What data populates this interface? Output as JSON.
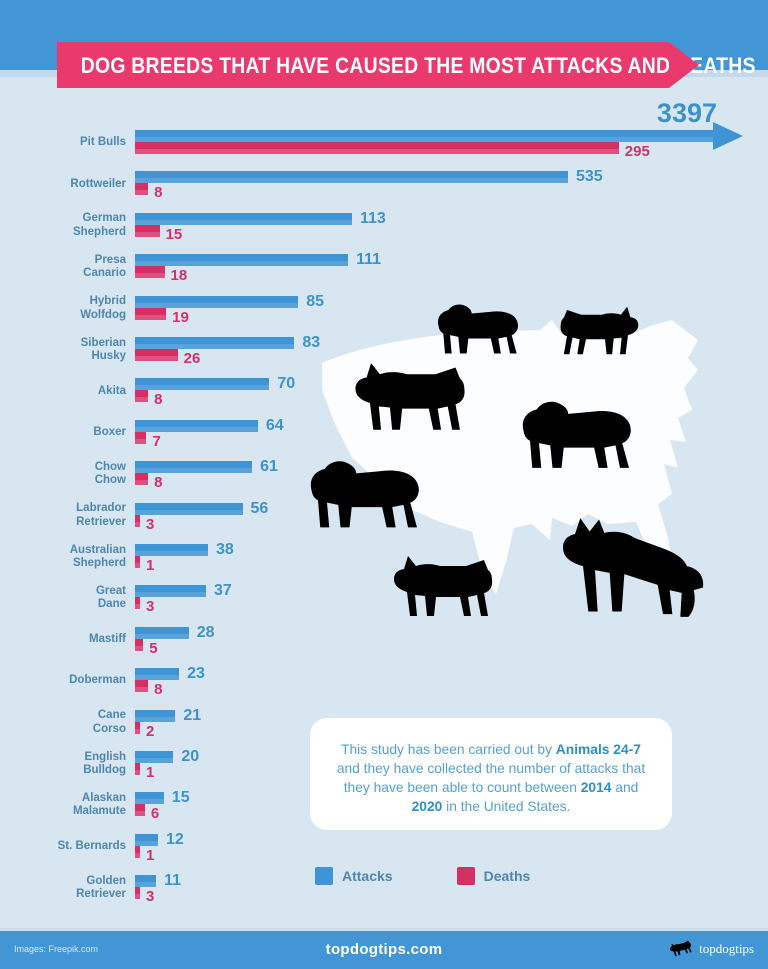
{
  "header": {
    "title": "DOG BREEDS THAT HAVE CAUSED THE MOST ATTACKS AND DEATHS"
  },
  "chart_data": {
    "type": "bar",
    "orientation": "horizontal",
    "title": "DOG BREEDS THAT HAVE CAUSED THE MOST ATTACKS AND DEATHS",
    "categories": [
      "Pit Bulls",
      "Rottweiler",
      "German\nShepherd",
      "Presa\nCanario",
      "Hybrid\nWolfdog",
      "Siberian\nHusky",
      "Akita",
      "Boxer",
      "Chow\nChow",
      "Labrador\nRetriever",
      "Australian\nShepherd",
      "Great\nDane",
      "Mastiff",
      "Doberman",
      "Cane\nCorso",
      "English\nBulldog",
      "Alaskan\nMalamute",
      "St. Bernards",
      "Golden\nRetriever"
    ],
    "series": [
      {
        "name": "Attacks",
        "color": "#3e94d4",
        "values": [
          3397,
          535,
          113,
          111,
          85,
          83,
          70,
          64,
          61,
          56,
          38,
          37,
          28,
          23,
          21,
          20,
          15,
          12,
          11
        ]
      },
      {
        "name": "Deaths",
        "color": "#d62f63",
        "values": [
          295,
          8,
          15,
          18,
          19,
          26,
          8,
          7,
          8,
          3,
          1,
          3,
          5,
          8,
          2,
          1,
          6,
          1,
          3
        ]
      }
    ],
    "value_labels": true,
    "grid": false,
    "legend_position": "bottom"
  },
  "note": {
    "segments": [
      {
        "text": "This study has been carried out by ",
        "bold": false
      },
      {
        "text": "Animals 24-7",
        "bold": true
      },
      {
        "text": " and they have collected the number of attacks that they have been able to count between ",
        "bold": false
      },
      {
        "text": "2014",
        "bold": true
      },
      {
        "text": " and ",
        "bold": false
      },
      {
        "text": "2020",
        "bold": true
      },
      {
        "text": " in the United States.",
        "bold": false
      }
    ]
  },
  "legend": {
    "items": [
      {
        "label": "Attacks",
        "color": "#3e94d4"
      },
      {
        "label": "Deaths",
        "color": "#d62f63"
      }
    ]
  },
  "footer": {
    "site": "topdogtips.com",
    "credit": "Images: Freepik.com",
    "logo_text": "topdogtips"
  },
  "colors": {
    "background": "#d8e6f1",
    "band": "#4296d5",
    "banner": "#ea3a6d",
    "attacks_bar": "#3e94d4",
    "deaths_bar": "#d62f63",
    "label_text": "#4d86af",
    "map": "#fbfdff",
    "dog_silhouette": "#a7cee9"
  }
}
